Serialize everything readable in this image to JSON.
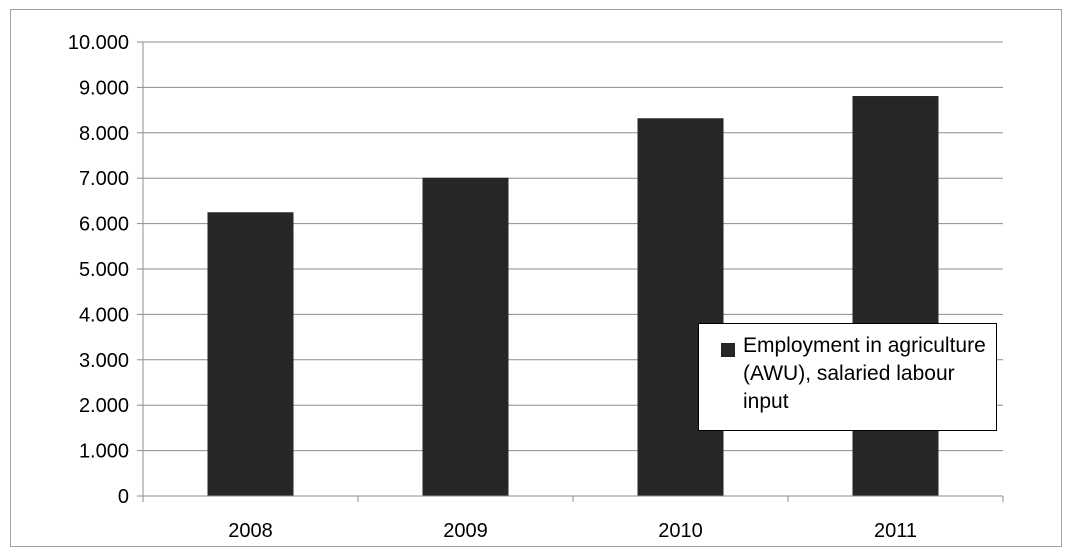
{
  "chart_data": {
    "type": "bar",
    "categories": [
      "2008",
      "2009",
      "2010",
      "2011"
    ],
    "series": [
      {
        "name": "Employment in agriculture (AWU), salaried labour input",
        "values": [
          6250,
          7010,
          8320,
          8810
        ],
        "color": "#262626"
      }
    ],
    "ylim": [
      0,
      10000
    ],
    "yticks": [
      0,
      1000,
      2000,
      3000,
      4000,
      5000,
      6000,
      7000,
      8000,
      9000,
      10000
    ],
    "ytick_labels": [
      "0",
      "1.000",
      "2.000",
      "3.000",
      "4.000",
      "5.000",
      "6.000",
      "7.000",
      "8.000",
      "9.000",
      "10.000"
    ],
    "grid": true,
    "legend_position": "right"
  }
}
